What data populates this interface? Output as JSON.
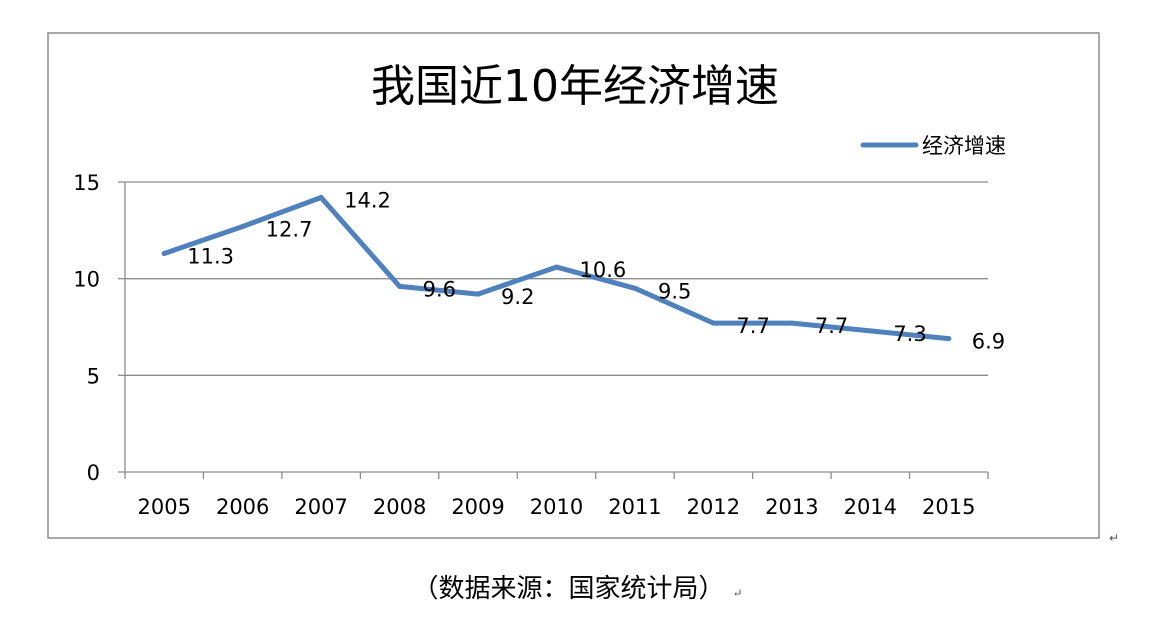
{
  "chart_data": {
    "type": "line",
    "title": "我国近10年经济增速",
    "categories": [
      "2005",
      "2006",
      "2007",
      "2008",
      "2009",
      "2010",
      "2011",
      "2012",
      "2013",
      "2014",
      "2015"
    ],
    "series": [
      {
        "name": "经济增速",
        "values": [
          11.3,
          12.7,
          14.2,
          9.6,
          9.2,
          10.6,
          9.5,
          7.7,
          7.7,
          7.3,
          6.9
        ]
      }
    ],
    "data_labels": [
      "11.3",
      "12.7",
      "14.2",
      "9.6",
      "9.2",
      "10.6",
      "9.5",
      "7.7",
      "7.7",
      "7.3",
      "6.9"
    ],
    "y_ticks": [
      "0",
      "5",
      "10",
      "15"
    ],
    "ylim": [
      0,
      15
    ],
    "grid": true,
    "legend_position": "top-right",
    "series_color": "#4f81bd"
  },
  "source_note": "（数据来源：国家统计局）",
  "paragraph_mark": "↵"
}
